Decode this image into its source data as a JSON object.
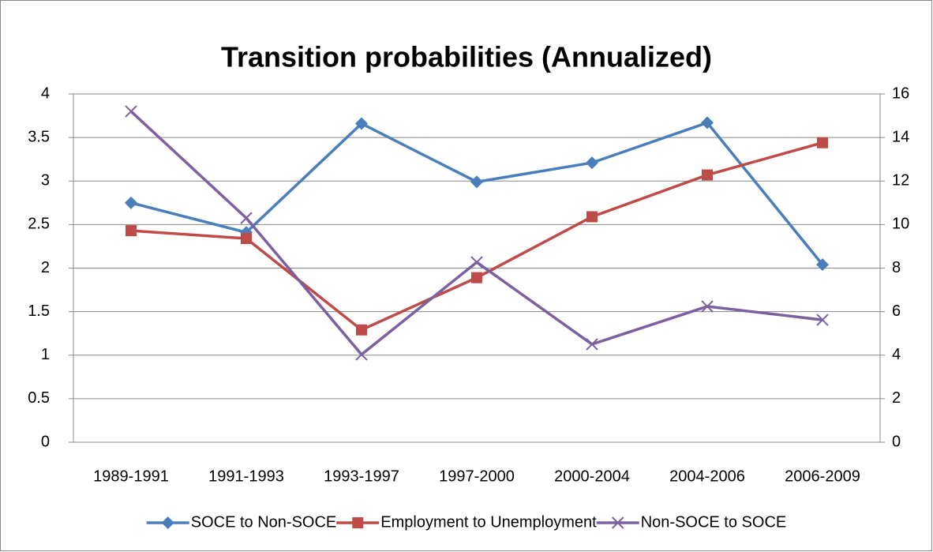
{
  "chart_data": {
    "type": "line",
    "title": "Transition probabilities (Annualized)",
    "categories": [
      "1989-1991",
      "1991-1993",
      "1993-1997",
      "1997-2000",
      "2000-2004",
      "2004-2006",
      "2006-2009"
    ],
    "series": [
      {
        "name": "SOCE to Non-SOCE",
        "color": "#4a7ebb",
        "marker": "diamond",
        "values": [
          2.75,
          2.41,
          3.66,
          2.99,
          3.21,
          3.67,
          2.04
        ]
      },
      {
        "name": "Employment to Unemployment",
        "color": "#be4b48",
        "marker": "square",
        "values": [
          2.43,
          2.34,
          1.29,
          1.89,
          2.59,
          3.07,
          3.44
        ]
      },
      {
        "name": "Non-SOCE to SOCE",
        "color": "#7d60a0",
        "marker": "x",
        "axis": "y2",
        "values": [
          15.2,
          10.3,
          4.03,
          8.27,
          4.5,
          6.24,
          5.62
        ]
      }
    ],
    "ylim": [
      0,
      4
    ],
    "yticks": [
      0,
      0.5,
      1,
      1.5,
      2,
      2.5,
      3,
      3.5,
      4
    ],
    "y2lim": [
      0,
      16
    ],
    "y2ticks": [
      0,
      2,
      4,
      6,
      8,
      10,
      12,
      14,
      16
    ],
    "grid": true,
    "legend": "bottom"
  }
}
